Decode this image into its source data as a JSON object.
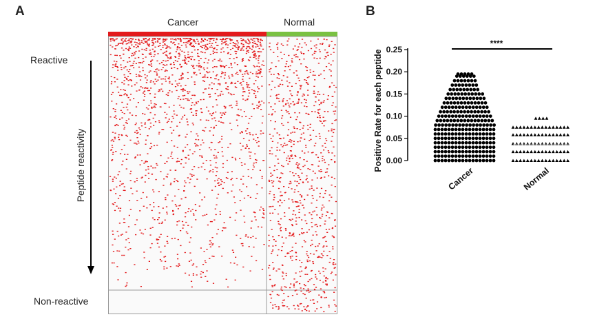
{
  "panel_a": {
    "letter": "A",
    "group_labels": [
      "Cancer",
      "Normal"
    ],
    "reactive_label": "Reactive",
    "non_reactive_label": "Non-reactive",
    "axis_label": "Peptide reactivity",
    "colors": {
      "cancer_bar": "#e31a1c",
      "normal_bar": "#7ac142",
      "dot": "#e41a1c",
      "border": "#999999"
    }
  },
  "panel_b": {
    "letter": "B"
  },
  "chart_data": [
    {
      "type": "heatmap",
      "title": "",
      "column_groups": [
        "Cancer",
        "Normal"
      ],
      "group_colors": {
        "Cancer": "#e31a1c",
        "Normal": "#7ac142"
      },
      "row_order_top": "Reactive",
      "row_order_bottom": "Non-reactive",
      "row_axis_label": "Peptide reactivity",
      "value_color": "#e41a1c"
    },
    {
      "type": "scatter",
      "title": "",
      "categories": [
        "Cancer",
        "Normal"
      ],
      "ylabel": "Positive Rate for each peptide",
      "xlabel": "",
      "ylim": [
        0,
        0.25
      ],
      "yticks": [
        0.0,
        0.05,
        0.1,
        0.15,
        0.2,
        0.25
      ],
      "ytick_labels": [
        "0.00",
        "0.05",
        "0.10",
        "0.15",
        "0.20",
        "0.25"
      ],
      "series": [
        {
          "name": "Cancer",
          "marker": "circle",
          "values": [
            0.195,
            0.19,
            0.18,
            0.17,
            0.16,
            0.15,
            0.14,
            0.13,
            0.12,
            0.11,
            0.1,
            0.09,
            0.08,
            0.07,
            0.06,
            0.05,
            0.04,
            0.03,
            0.02,
            0.01,
            0.0
          ]
        },
        {
          "name": "Normal",
          "marker": "triangle",
          "values": [
            0.095,
            0.075,
            0.058,
            0.038,
            0.02,
            0.0
          ]
        }
      ],
      "significance": {
        "label": "****",
        "between": [
          "Cancer",
          "Normal"
        ]
      },
      "color": "#000000"
    }
  ]
}
